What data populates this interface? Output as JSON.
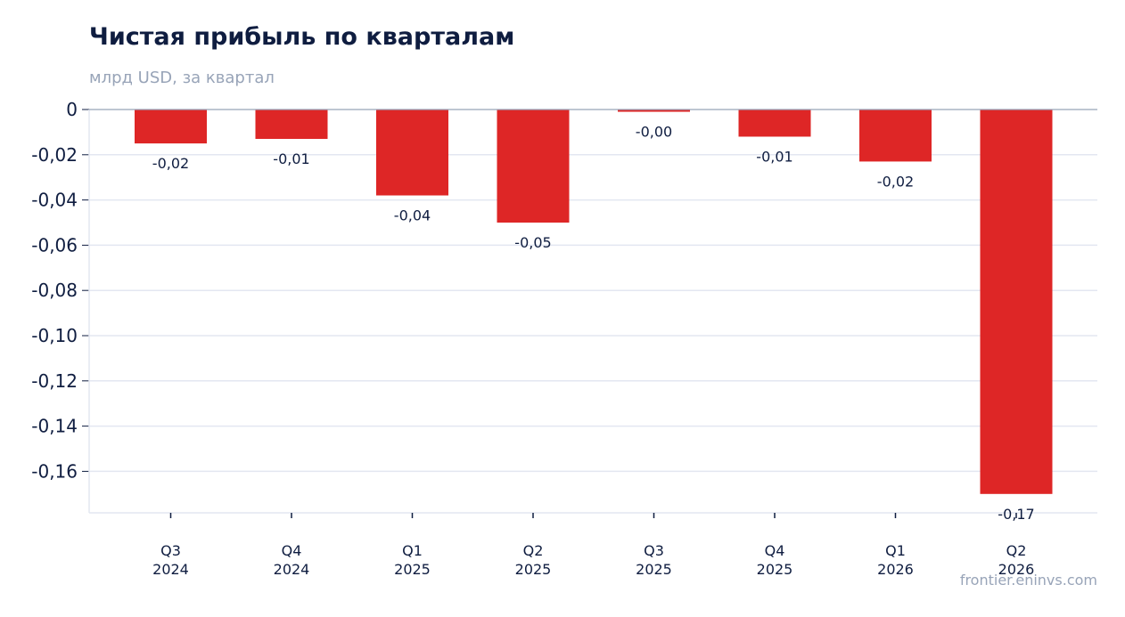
{
  "chart_data": {
    "type": "bar",
    "title": "Чистая прибыль по кварталам",
    "subtitle": "млрд USD, за квартал",
    "source": "frontier.eninvs.com",
    "categories": [
      [
        "Q3",
        "2024"
      ],
      [
        "Q4",
        "2024"
      ],
      [
        "Q1",
        "2025"
      ],
      [
        "Q2",
        "2025"
      ],
      [
        "Q3",
        "2025"
      ],
      [
        "Q4",
        "2025"
      ],
      [
        "Q1",
        "2026"
      ],
      [
        "Q2",
        "2026"
      ]
    ],
    "values": [
      -0.015,
      -0.013,
      -0.038,
      -0.05,
      -0.001,
      -0.012,
      -0.023,
      -0.17
    ],
    "data_labels": [
      "-0,02",
      "-0,01",
      "-0,04",
      "-0,05",
      "-0,00",
      "-0,01",
      "-0,02",
      "-0,17"
    ],
    "ylim": [
      -0.178,
      0
    ],
    "yticks": [
      0,
      -0.02,
      -0.04,
      -0.06,
      -0.08,
      -0.1,
      -0.12,
      -0.14,
      -0.16
    ],
    "ytick_labels": [
      "0",
      "-0,02",
      "-0,04",
      "-0,06",
      "-0,08",
      "-0,10",
      "-0,12",
      "-0,14",
      "-0,16"
    ],
    "bar_color": "#de2626",
    "grid": true,
    "legend": "none"
  }
}
